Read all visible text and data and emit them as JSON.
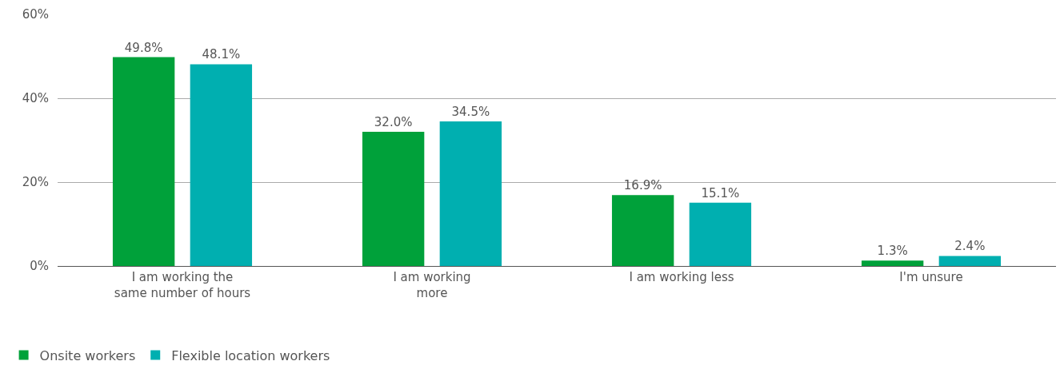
{
  "chart_data": {
    "type": "bar",
    "categories": [
      "I am working the\nsame number of hours",
      "I am working\nmore",
      "I am working less",
      "I'm unsure"
    ],
    "series": [
      {
        "name": "Onsite workers",
        "color": "#00a13a",
        "values": [
          49.8,
          32.0,
          16.9,
          1.3
        ],
        "value_labels": [
          "49.8%",
          "32.0%",
          "16.9%",
          "1.3%"
        ]
      },
      {
        "name": "Flexible location workers",
        "color": "#00afb0",
        "values": [
          48.1,
          34.5,
          15.1,
          2.4
        ],
        "value_labels": [
          "48.1%",
          "34.5%",
          "15.1%",
          "2.4%"
        ]
      }
    ],
    "ylim": [
      0,
      60
    ],
    "yticks": [
      {
        "value": 0,
        "label": "0%"
      },
      {
        "value": 20,
        "label": "20%"
      },
      {
        "value": 40,
        "label": "40%"
      },
      {
        "value": 60,
        "label": "60%"
      }
    ],
    "grid": "y",
    "legend": "bottom left"
  }
}
